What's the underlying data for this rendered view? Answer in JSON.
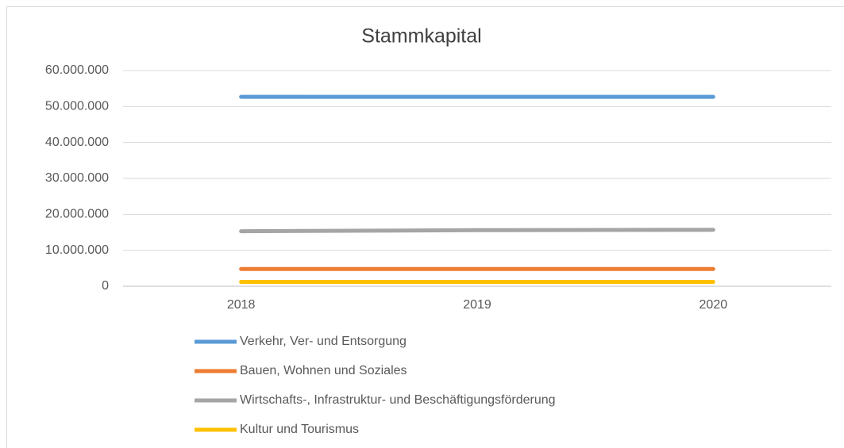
{
  "chart_data": {
    "type": "line",
    "title": "Stammkapital",
    "categories": [
      "2018",
      "2019",
      "2020"
    ],
    "series": [
      {
        "name": "Verkehr, Ver- und Entsorgung",
        "color": "#5b9bd5",
        "values": [
          52700000,
          52700000,
          52700000
        ]
      },
      {
        "name": "Bauen, Wohnen und Soziales",
        "color": "#ed7d31",
        "values": [
          4800000,
          4800000,
          4800000
        ]
      },
      {
        "name": "Wirtschafts-, Infrastruktur- und Beschäftigungsförderung",
        "color": "#a5a5a5",
        "values": [
          15300000,
          15600000,
          15700000
        ]
      },
      {
        "name": "Kultur und Tourismus",
        "color": "#ffc000",
        "values": [
          1200000,
          1200000,
          1200000
        ]
      }
    ],
    "ylim": [
      0,
      60000000
    ],
    "yticks": [
      0,
      {
        "value": 10000000,
        "label": "10.000.000"
      },
      {
        "value": 20000000,
        "label": "20.000.000"
      },
      {
        "value": 30000000,
        "label": "30.000.000"
      },
      {
        "value": 40000000,
        "label": "40.000.000"
      },
      {
        "value": 50000000,
        "label": "50.000.000"
      },
      {
        "value": 60000000,
        "label": "60.000.000"
      }
    ],
    "grid": true,
    "legend": "bottom"
  }
}
